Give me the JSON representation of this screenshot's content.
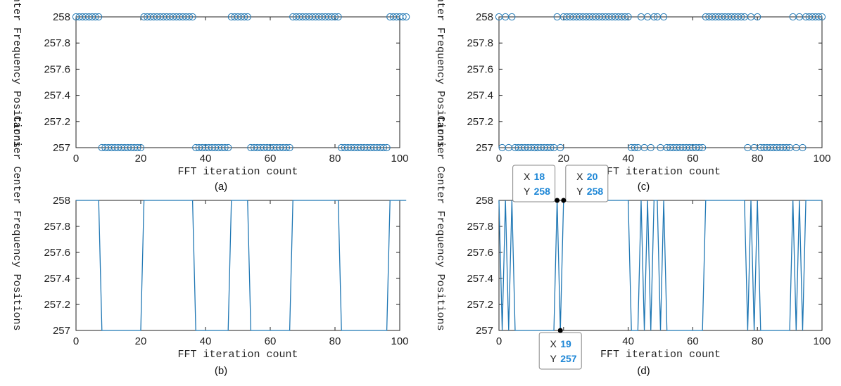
{
  "colors": {
    "series": "#1f77b4",
    "axis": "#222222",
    "datatip_value": "#1c86d6"
  },
  "chart_data": [
    {
      "id": "a",
      "type": "scatter",
      "marker": "open-circle",
      "caption": "(a)",
      "xlabel": "FFT iteration count",
      "ylabel": "Carrier Center Frequency Positions",
      "xlim": [
        0,
        100
      ],
      "ylim": [
        257,
        258
      ],
      "xticks": [
        "0",
        "20",
        "40",
        "60",
        "80",
        "100"
      ],
      "yticks": [
        "257",
        "257.2",
        "257.4",
        "257.6",
        "257.8",
        "258"
      ],
      "grid": false,
      "series": [
        {
          "values": [
            258,
            258,
            258,
            258,
            258,
            258,
            258,
            258,
            257,
            257,
            257,
            257,
            257,
            257,
            257,
            257,
            257,
            257,
            257,
            257,
            257,
            258,
            258,
            258,
            258,
            258,
            258,
            258,
            258,
            258,
            258,
            258,
            258,
            258,
            258,
            258,
            258,
            257,
            257,
            257,
            257,
            257,
            257,
            257,
            257,
            257,
            257,
            257,
            258,
            258,
            258,
            258,
            258,
            258,
            257,
            257,
            257,
            257,
            257,
            257,
            257,
            257,
            257,
            257,
            257,
            257,
            257,
            258,
            258,
            258,
            258,
            258,
            258,
            258,
            258,
            258,
            258,
            258,
            258,
            258,
            258,
            258,
            257,
            257,
            257,
            257,
            257,
            257,
            257,
            257,
            257,
            257,
            257,
            257,
            257,
            257,
            257,
            258,
            258,
            258,
            258,
            258,
            258
          ]
        }
      ]
    },
    {
      "id": "b",
      "type": "line",
      "caption": "(b)",
      "xlabel": "FFT iteration count",
      "ylabel": "Carrier Center Frequency Positions",
      "xlim": [
        0,
        100
      ],
      "ylim": [
        257,
        258
      ],
      "xticks": [
        "0",
        "20",
        "40",
        "60",
        "80",
        "100"
      ],
      "yticks": [
        "257",
        "257.2",
        "257.4",
        "257.6",
        "257.8",
        "258"
      ],
      "grid": false,
      "series": [
        {
          "values": [
            258,
            258,
            258,
            258,
            258,
            258,
            258,
            258,
            257,
            257,
            257,
            257,
            257,
            257,
            257,
            257,
            257,
            257,
            257,
            257,
            257,
            258,
            258,
            258,
            258,
            258,
            258,
            258,
            258,
            258,
            258,
            258,
            258,
            258,
            258,
            258,
            258,
            257,
            257,
            257,
            257,
            257,
            257,
            257,
            257,
            257,
            257,
            257,
            258,
            258,
            258,
            258,
            258,
            258,
            257,
            257,
            257,
            257,
            257,
            257,
            257,
            257,
            257,
            257,
            257,
            257,
            257,
            258,
            258,
            258,
            258,
            258,
            258,
            258,
            258,
            258,
            258,
            258,
            258,
            258,
            258,
            258,
            257,
            257,
            257,
            257,
            257,
            257,
            257,
            257,
            257,
            257,
            257,
            257,
            257,
            257,
            257,
            258,
            258,
            258,
            258,
            258,
            258
          ]
        }
      ]
    },
    {
      "id": "c",
      "type": "scatter",
      "marker": "open-circle",
      "caption": "(c)",
      "xlabel": "FFT iteration count",
      "ylabel": "Carrier Center Frequency Positions",
      "xlim": [
        0,
        100
      ],
      "ylim": [
        257,
        258
      ],
      "xticks": [
        "0",
        "20",
        "40",
        "60",
        "80",
        "100"
      ],
      "yticks": [
        "257",
        "257.2",
        "257.4",
        "257.6",
        "257.8",
        "258"
      ],
      "grid": false,
      "series": [
        {
          "values": [
            258,
            257,
            258,
            257,
            258,
            257,
            257,
            257,
            257,
            257,
            257,
            257,
            257,
            257,
            257,
            257,
            257,
            257,
            258,
            257,
            258,
            258,
            258,
            258,
            258,
            258,
            258,
            258,
            258,
            258,
            258,
            258,
            258,
            258,
            258,
            258,
            258,
            258,
            258,
            258,
            258,
            257,
            257,
            257,
            258,
            257,
            258,
            257,
            258,
            258,
            257,
            258,
            257,
            257,
            257,
            257,
            257,
            257,
            257,
            257,
            257,
            257,
            257,
            257,
            258,
            258,
            258,
            258,
            258,
            258,
            258,
            258,
            258,
            258,
            258,
            258,
            258,
            257,
            258,
            257,
            258,
            257,
            257,
            257,
            257,
            257,
            257,
            257,
            257,
            257,
            257,
            258,
            257,
            258,
            257,
            258,
            258,
            258,
            258,
            258,
            258
          ]
        }
      ]
    },
    {
      "id": "d",
      "type": "line",
      "caption": "(d)",
      "xlabel": "FFT iteration count",
      "ylabel": "Carrier Center Frequency Positions",
      "xlim": [
        0,
        100
      ],
      "ylim": [
        257,
        258
      ],
      "xticks": [
        "0",
        "20",
        "40",
        "60",
        "80",
        "100"
      ],
      "yticks": [
        "257",
        "257.2",
        "257.4",
        "257.6",
        "257.8",
        "258"
      ],
      "grid": false,
      "series": [
        {
          "values": [
            258,
            257,
            258,
            257,
            258,
            257,
            257,
            257,
            257,
            257,
            257,
            257,
            257,
            257,
            257,
            257,
            257,
            257,
            258,
            257,
            258,
            258,
            258,
            258,
            258,
            258,
            258,
            258,
            258,
            258,
            258,
            258,
            258,
            258,
            258,
            258,
            258,
            258,
            258,
            258,
            258,
            257,
            257,
            257,
            258,
            257,
            258,
            257,
            258,
            258,
            257,
            258,
            257,
            257,
            257,
            257,
            257,
            257,
            257,
            257,
            257,
            257,
            257,
            257,
            258,
            258,
            258,
            258,
            258,
            258,
            258,
            258,
            258,
            258,
            258,
            258,
            258,
            257,
            258,
            257,
            258,
            257,
            257,
            257,
            257,
            257,
            257,
            257,
            257,
            257,
            257,
            258,
            257,
            258,
            257,
            258,
            258,
            258,
            258,
            258,
            258
          ]
        }
      ],
      "datatips": [
        {
          "x": 18,
          "y": 258,
          "x_label": "X",
          "y_label": "Y",
          "x_text": "18",
          "y_text": "258",
          "side": "left"
        },
        {
          "x": 20,
          "y": 258,
          "x_label": "X",
          "y_label": "Y",
          "x_text": "20",
          "y_text": "258",
          "side": "right"
        },
        {
          "x": 19,
          "y": 257,
          "x_label": "X",
          "y_label": "Y",
          "x_text": "19",
          "y_text": "257",
          "side": "below"
        }
      ]
    }
  ]
}
